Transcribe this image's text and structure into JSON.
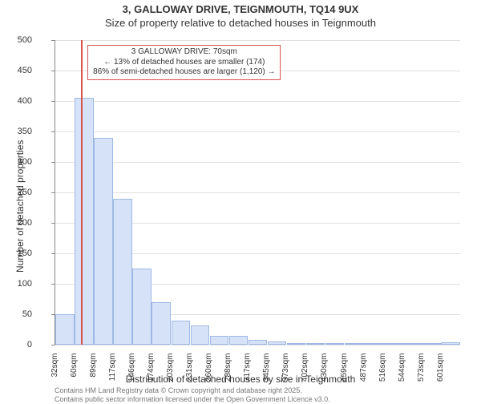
{
  "title_line1": "3, GALLOWAY DRIVE, TEIGNMOUTH, TQ14 9UX",
  "title_line2": "Size of property relative to detached houses in Teignmouth",
  "xlabel": "Distribution of detached houses by size in Teignmouth",
  "ylabel": "Number of detached properties",
  "footer_line1": "Contains HM Land Registry data © Crown copyright and database right 2025.",
  "footer_line2": "Contains public sector information licensed under the Open Government Licence v3.0.",
  "chart": {
    "type": "histogram",
    "ylim": [
      0,
      500
    ],
    "ytick_step": 50,
    "y_grid_color": "#e0e0e0",
    "bar_fill": "#d6e2f7",
    "bar_stroke": "#9fb8e3",
    "bar_width": 0.98,
    "background_color": "#ffffff",
    "axis_color": "#888888",
    "tick_font_size": 10,
    "x_tick_suffix": "sqm",
    "x_ticks": [
      32,
      60,
      89,
      117,
      146,
      174,
      203,
      231,
      260,
      288,
      317,
      345,
      373,
      402,
      430,
      459,
      487,
      516,
      544,
      573,
      601
    ],
    "values": [
      50,
      405,
      340,
      240,
      125,
      70,
      40,
      32,
      15,
      15,
      8,
      5,
      0,
      3,
      3,
      0,
      0,
      0,
      0,
      0,
      4
    ],
    "reference_line": {
      "x_value": 70,
      "color": "#d9534f",
      "width": 2
    },
    "annotation": {
      "border_color": "#d9534f",
      "text_color": "#333333",
      "line1": "3 GALLOWAY DRIVE: 70sqm",
      "line2": "← 13% of detached houses are smaller (174)",
      "line3": "86% of semi-detached houses are larger (1,120) →"
    }
  }
}
